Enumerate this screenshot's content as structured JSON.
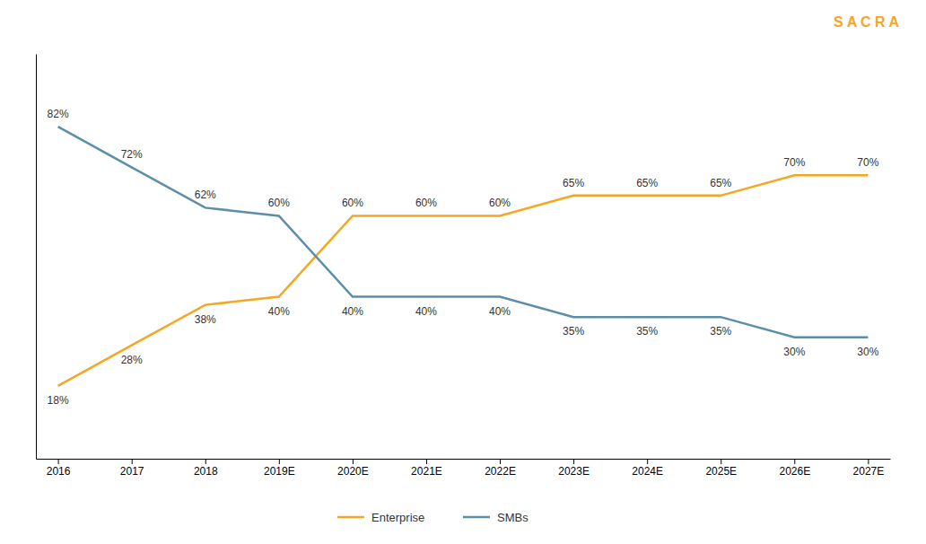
{
  "chart_data": {
    "type": "line",
    "categories": [
      "2016",
      "2017",
      "2018",
      "2019E",
      "2020E",
      "2021E",
      "2022E",
      "2023E",
      "2024E",
      "2025E",
      "2026E",
      "2027E"
    ],
    "series": [
      {
        "name": "Enterprise",
        "color": "#F5A623",
        "values": [
          18,
          28,
          38,
          40,
          60,
          60,
          60,
          65,
          65,
          65,
          70,
          70
        ],
        "value_labels": [
          "18%",
          "28%",
          "38%",
          "40%",
          "60%",
          "60%",
          "60%",
          "65%",
          "65%",
          "65%",
          "70%",
          "70%"
        ]
      },
      {
        "name": "SMBs",
        "color": "#5B8FA8",
        "values": [
          82,
          72,
          62,
          60,
          40,
          40,
          40,
          35,
          35,
          35,
          30,
          30
        ],
        "value_labels": [
          "82%",
          "72%",
          "62%",
          "60%",
          "40%",
          "40%",
          "40%",
          "35%",
          "35%",
          "35%",
          "30%",
          "30%"
        ]
      }
    ],
    "ylim": [
      0,
      100
    ],
    "yticks": [],
    "grid": false,
    "legend": "bottom",
    "data_labels": true,
    "tick_labels": "x",
    "annotations": [
      {
        "text": "S A C R A",
        "color": "#F5A623"
      }
    ]
  }
}
